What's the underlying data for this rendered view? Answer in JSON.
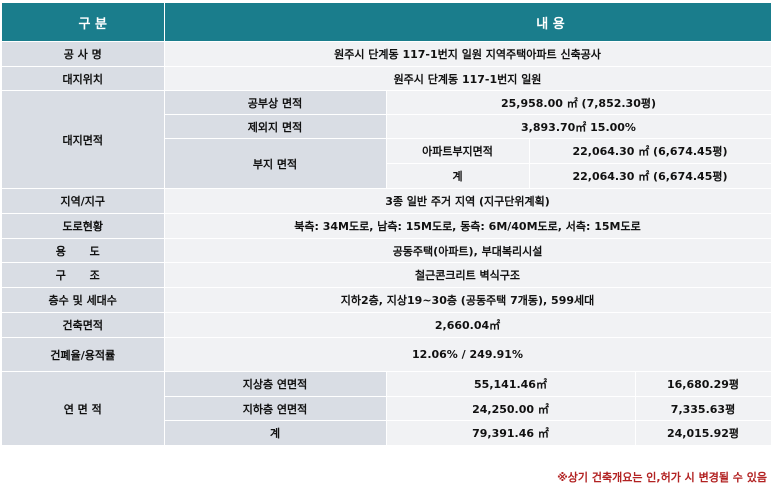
{
  "header": {
    "col1": "구 분",
    "col2": "내 용"
  },
  "rows": {
    "project_name": {
      "label": "공 사 명",
      "value": "원주시 단계동 117-1번지 일원 지역주택아파트 신축공사"
    },
    "site_location": {
      "label": "대지위치",
      "value": "원주시 단계동 117-1번지 일원"
    },
    "site_area": {
      "label": "대지면적",
      "public_area": {
        "label": "공부상 면적",
        "value": "25,958.00 ㎡  (7,852.30평)"
      },
      "excluded_area": {
        "label": "제외지 면적",
        "value": "3,893.70㎡     15.00%"
      },
      "land_area": {
        "label": "부지 면적",
        "apt_land": {
          "label": "아파트부지면적",
          "value": "22,064.30 ㎡   (6,674.45평)"
        },
        "total": {
          "label": "계",
          "value": "22,064.30 ㎡   (6,674.45평)"
        }
      }
    },
    "zone": {
      "label": "지역/지구",
      "value": "3종 일반 주거 지역 (지구단위계획)"
    },
    "roads": {
      "label": "도로현황",
      "value": "북측: 34M도로,  남측: 15M도로,  동측: 6M/40M도로,  서측: 15M도로"
    },
    "use": {
      "label": "용 도",
      "value": "공동주택(아파트),  부대복리시설"
    },
    "structure": {
      "label": "구 조",
      "value": "철근콘크리트 벽식구조"
    },
    "floors_units": {
      "label": "층수 및 세대수",
      "value": "지하2층,  지상19~30층 (공동주택 7개동),  599세대"
    },
    "building_area": {
      "label": "건축면적",
      "value": "2,660.04㎡"
    },
    "ratio": {
      "label": "건폐율/용적률",
      "value": "12.06% / 249.91%"
    },
    "gross_area": {
      "label": "연 면 적",
      "above": {
        "label": "지상층 연면적",
        "sqm": "55,141.46㎡",
        "pyeong": "16,680.29평"
      },
      "below": {
        "label": "지하층 연면적",
        "sqm": "24,250.00 ㎡",
        "pyeong": "7,335.63평"
      },
      "total": {
        "label": "계",
        "sqm": "79,391.46 ㎡",
        "pyeong": "24,015.92평"
      }
    }
  },
  "footnote": "※상기 건축개요는 인,허가 시 변경될 수 있음"
}
